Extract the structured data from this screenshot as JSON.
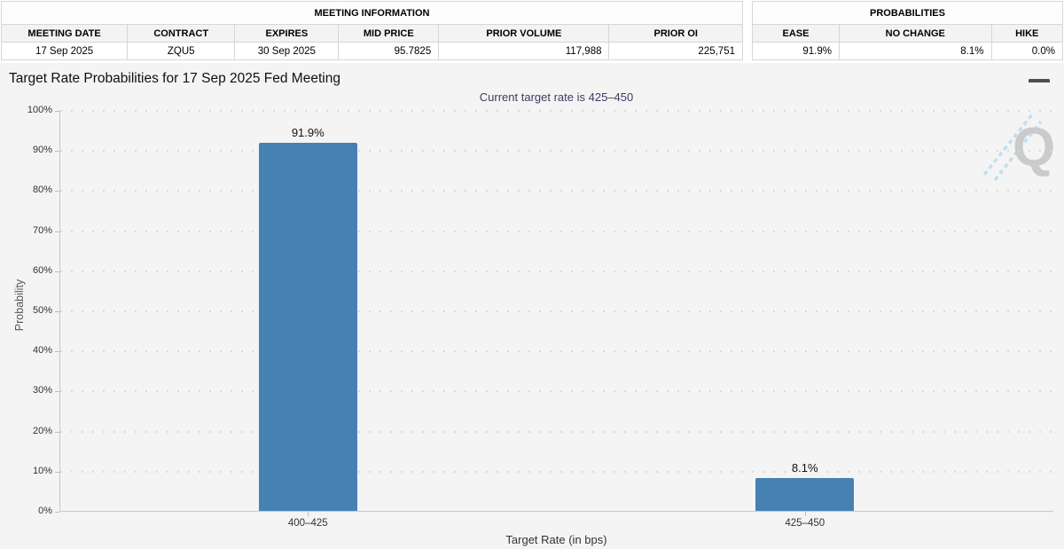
{
  "meeting_information": {
    "title": "MEETING INFORMATION",
    "columns": [
      "MEETING DATE",
      "CONTRACT",
      "EXPIRES",
      "MID PRICE",
      "PRIOR VOLUME",
      "PRIOR OI"
    ],
    "row": [
      "17 Sep 2025",
      "ZQU5",
      "30 Sep 2025",
      "95.7825",
      "117,988",
      "225,751"
    ]
  },
  "probabilities_summary": {
    "title": "PROBABILITIES",
    "columns": [
      "EASE",
      "NO CHANGE",
      "HIKE"
    ],
    "row": [
      "91.9%",
      "8.1%",
      "0.0%"
    ]
  },
  "chart": {
    "title": "Target Rate Probabilities for 17 Sep 2025 Fed Meeting",
    "subtitle": "Current target rate is 425–450"
  },
  "chart_data": {
    "type": "bar",
    "categories": [
      "400–425",
      "425–450"
    ],
    "values": [
      91.9,
      8.1
    ],
    "value_labels": [
      "91.9%",
      "8.1%"
    ],
    "title": "Target Rate Probabilities for 17 Sep 2025 Fed Meeting",
    "subtitle": "Current target rate is 425–450",
    "xlabel": "Target Rate (in bps)",
    "ylabel": "Probability",
    "ylim": [
      0,
      100
    ],
    "yticks": [
      0,
      10,
      20,
      30,
      40,
      50,
      60,
      70,
      80,
      90,
      100
    ],
    "ytick_suffix": "%",
    "grid": "dotted-horizontal",
    "legend": "none",
    "bar_color": "#4681b4"
  },
  "icons": {
    "menu": "hamburger-menu-icon",
    "watermark_letter": "Q"
  }
}
